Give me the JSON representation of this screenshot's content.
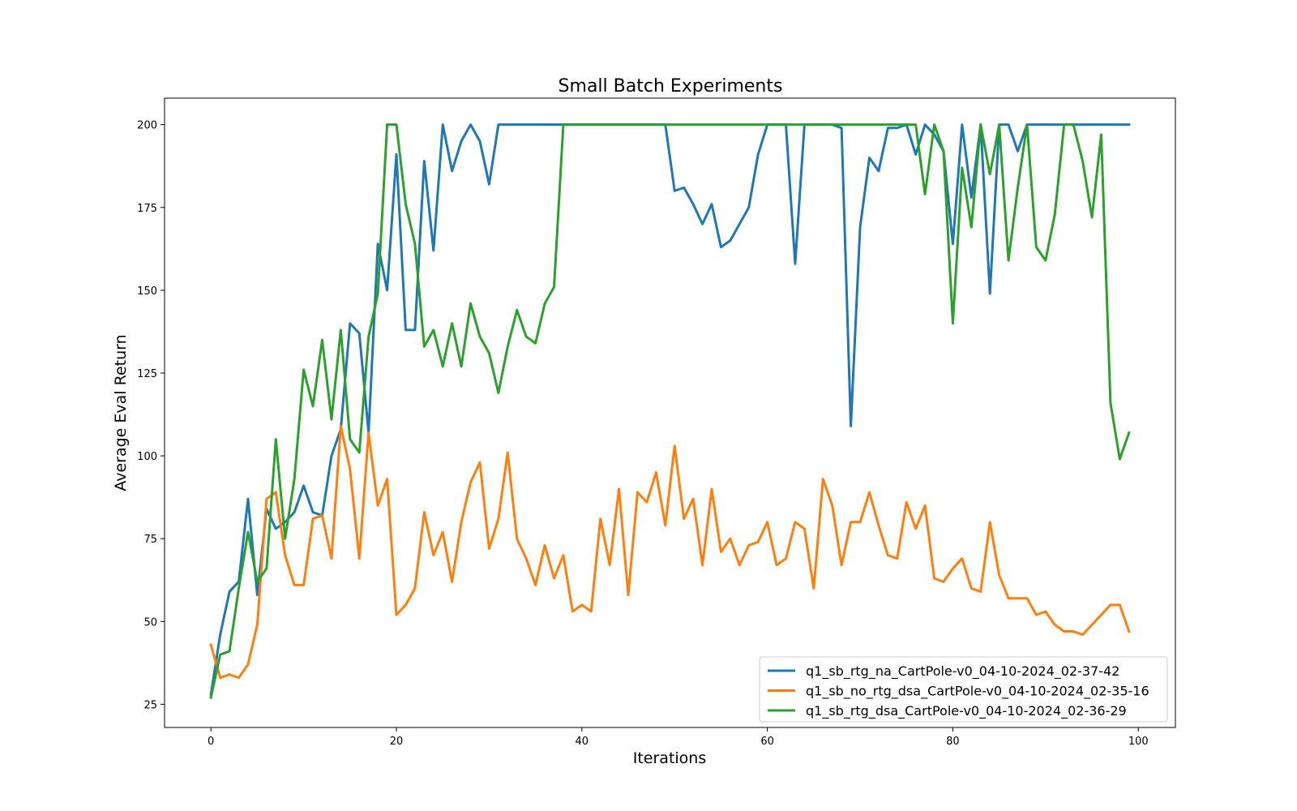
{
  "chart_data": {
    "type": "line",
    "title": "Small Batch Experiments",
    "xlabel": "Iterations",
    "ylabel": "Average Eval Return",
    "xlim": [
      -5,
      104
    ],
    "ylim": [
      18,
      208
    ],
    "xticks": [
      0,
      20,
      40,
      60,
      80,
      100
    ],
    "yticks": [
      25,
      50,
      75,
      100,
      125,
      150,
      175,
      200
    ],
    "grid": false,
    "legend_position": "lower-right",
    "x": [
      0,
      1,
      2,
      3,
      4,
      5,
      6,
      7,
      8,
      9,
      10,
      11,
      12,
      13,
      14,
      15,
      16,
      17,
      18,
      19,
      20,
      21,
      22,
      23,
      24,
      25,
      26,
      27,
      28,
      29,
      30,
      31,
      32,
      33,
      34,
      35,
      36,
      37,
      38,
      39,
      40,
      41,
      42,
      43,
      44,
      45,
      46,
      47,
      48,
      49,
      50,
      51,
      52,
      53,
      54,
      55,
      56,
      57,
      58,
      59,
      60,
      61,
      62,
      63,
      64,
      65,
      66,
      67,
      68,
      69,
      70,
      71,
      72,
      73,
      74,
      75,
      76,
      77,
      78,
      79,
      80,
      81,
      82,
      83,
      84,
      85,
      86,
      87,
      88,
      89,
      90,
      91,
      92,
      93,
      94,
      95,
      96,
      97,
      98,
      99
    ],
    "series": [
      {
        "name": "q1_sb_rtg_na_CartPole-v0_04-10-2024_02-37-42",
        "color": "#1f77b4",
        "values": [
          28,
          46,
          59,
          62,
          87,
          58,
          84,
          78,
          80,
          83,
          91,
          83,
          82,
          100,
          108,
          140,
          137,
          107,
          164,
          150,
          191,
          138,
          138,
          189,
          162,
          200,
          186,
          195,
          200,
          195,
          182,
          200,
          200,
          200,
          200,
          200,
          200,
          200,
          200,
          200,
          200,
          200,
          200,
          200,
          200,
          200,
          200,
          200,
          200,
          200,
          180,
          181,
          176,
          170,
          176,
          163,
          165,
          170,
          175,
          191,
          200,
          200,
          200,
          158,
          200,
          200,
          200,
          200,
          199,
          109,
          169,
          190,
          186,
          199,
          199,
          200,
          191,
          200,
          197,
          192,
          164,
          200,
          178,
          200,
          149,
          200,
          200,
          192,
          200,
          200,
          200,
          200,
          200,
          200,
          200,
          200,
          200,
          200,
          200,
          200
        ]
      },
      {
        "name": "q1_sb_no_rtg_dsa_CartPole-v0_04-10-2024_02-35-16",
        "color": "#ff7f0e",
        "values": [
          43,
          33,
          34,
          33,
          37,
          49,
          87,
          89,
          70,
          61,
          61,
          81,
          82,
          69,
          109,
          96,
          69,
          107,
          85,
          93,
          52,
          55,
          60,
          83,
          70,
          77,
          62,
          80,
          92,
          98,
          72,
          81,
          101,
          75,
          69,
          61,
          73,
          63,
          70,
          53,
          55,
          53,
          81,
          67,
          90,
          58,
          89,
          86,
          95,
          79,
          103,
          81,
          87,
          67,
          90,
          71,
          75,
          67,
          73,
          74,
          80,
          67,
          69,
          80,
          78,
          60,
          93,
          85,
          67,
          80,
          80,
          89,
          79,
          70,
          69,
          86,
          78,
          85,
          63,
          62,
          66,
          69,
          60,
          59,
          80,
          64,
          57,
          57,
          57,
          52,
          53,
          49,
          47,
          47,
          46,
          49,
          52,
          55,
          55,
          47
        ]
      },
      {
        "name": "q1_sb_rtg_dsa_CartPole-v0_04-10-2024_02-36-29",
        "color": "#2ca02c",
        "values": [
          27,
          40,
          41,
          60,
          77,
          62,
          66,
          105,
          75,
          93,
          126,
          115,
          135,
          111,
          138,
          105,
          101,
          136,
          149,
          200,
          200,
          176,
          164,
          133,
          138,
          127,
          140,
          127,
          146,
          136,
          131,
          119,
          133,
          144,
          136,
          134,
          146,
          151,
          200,
          200,
          200,
          200,
          200,
          200,
          200,
          200,
          200,
          200,
          200,
          200,
          200,
          200,
          200,
          200,
          200,
          200,
          200,
          200,
          200,
          200,
          200,
          200,
          200,
          200,
          200,
          200,
          200,
          200,
          200,
          200,
          200,
          200,
          200,
          200,
          200,
          200,
          200,
          179,
          200,
          192,
          140,
          187,
          169,
          200,
          185,
          200,
          159,
          181,
          200,
          163,
          159,
          173,
          200,
          200,
          189,
          172,
          197,
          116,
          99,
          107
        ]
      }
    ]
  }
}
